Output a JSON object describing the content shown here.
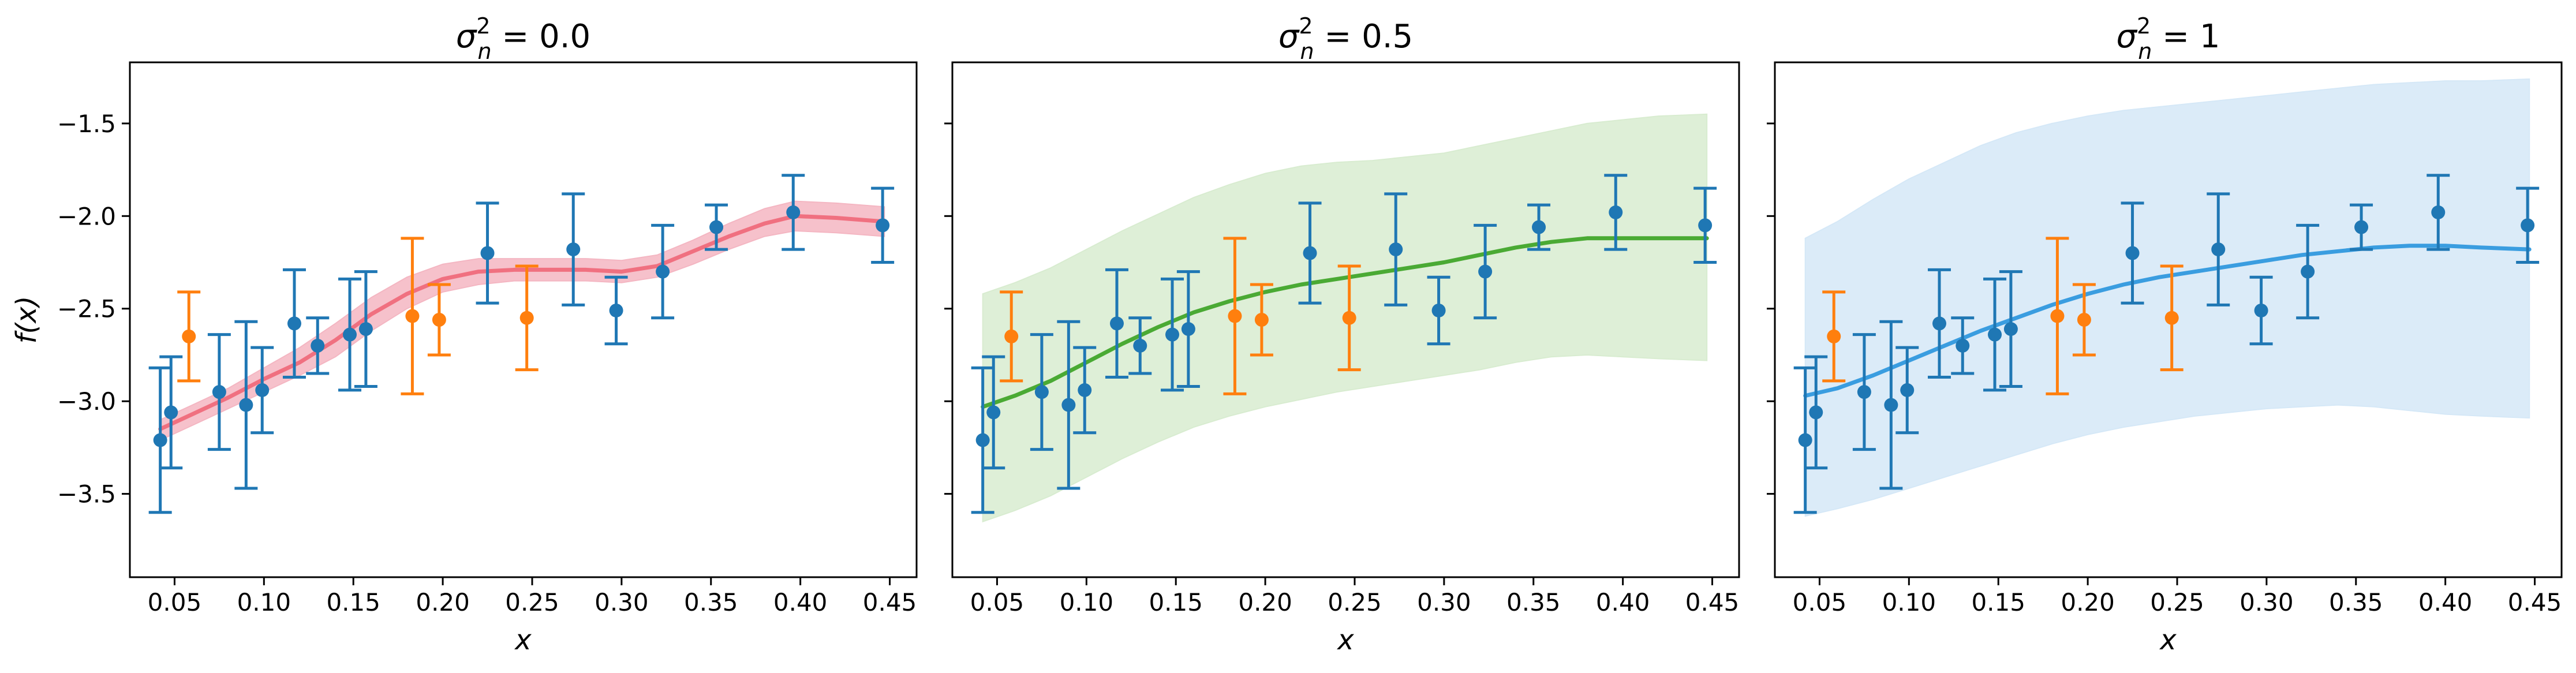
{
  "chart_data": [
    {
      "type": "line",
      "title_main": "σ",
      "title_sub": "n",
      "title_sup": "2",
      "title_rest": " = 0.0",
      "xlabel": "x",
      "ylabel": "f(x)",
      "xlim": [
        0.025,
        0.465
      ],
      "ylim": [
        -3.95,
        -1.17
      ],
      "xticks": [
        "0.05",
        "0.10",
        "0.15",
        "0.20",
        "0.25",
        "0.30",
        "0.35",
        "0.40",
        "0.45"
      ],
      "xtick_values": [
        0.05,
        0.1,
        0.15,
        0.2,
        0.25,
        0.3,
        0.35,
        0.4,
        0.45
      ],
      "yticks": [
        "−3.5",
        "−3.0",
        "−2.5",
        "−2.0",
        "−1.5"
      ],
      "ytick_values": [
        -3.5,
        -3.0,
        -2.5,
        -2.0,
        -1.5
      ],
      "show_yticklabels": true,
      "line_color": "#f07080",
      "band_color": "#f4b6c2",
      "mean": {
        "x": [
          0.042,
          0.06,
          0.08,
          0.1,
          0.12,
          0.14,
          0.16,
          0.18,
          0.2,
          0.22,
          0.24,
          0.26,
          0.28,
          0.3,
          0.32,
          0.34,
          0.36,
          0.38,
          0.397,
          0.42,
          0.447
        ],
        "y": [
          -3.15,
          -3.07,
          -2.98,
          -2.88,
          -2.79,
          -2.67,
          -2.53,
          -2.42,
          -2.34,
          -2.3,
          -2.29,
          -2.29,
          -2.29,
          -2.3,
          -2.27,
          -2.19,
          -2.11,
          -2.04,
          -2.0,
          -2.01,
          -2.03
        ]
      },
      "band_upper": [
        -3.1,
        -3.02,
        -2.93,
        -2.82,
        -2.71,
        -2.58,
        -2.44,
        -2.33,
        -2.26,
        -2.23,
        -2.23,
        -2.23,
        -2.23,
        -2.24,
        -2.21,
        -2.13,
        -2.04,
        -1.96,
        -1.92,
        -1.93,
        -1.95
      ],
      "band_lower": [
        -3.21,
        -3.13,
        -3.04,
        -2.95,
        -2.86,
        -2.76,
        -2.62,
        -2.5,
        -2.41,
        -2.37,
        -2.35,
        -2.35,
        -2.35,
        -2.36,
        -2.33,
        -2.26,
        -2.18,
        -2.11,
        -2.08,
        -2.09,
        -2.11
      ]
    },
    {
      "type": "line",
      "title_main": "σ",
      "title_sub": "n",
      "title_sup": "2",
      "title_rest": " = 0.5",
      "xlabel": "x",
      "ylabel": "",
      "xlim": [
        0.025,
        0.465
      ],
      "ylim": [
        -3.95,
        -1.17
      ],
      "xticks": [
        "0.05",
        "0.10",
        "0.15",
        "0.20",
        "0.25",
        "0.30",
        "0.35",
        "0.40",
        "0.45"
      ],
      "xtick_values": [
        0.05,
        0.1,
        0.15,
        0.2,
        0.25,
        0.3,
        0.35,
        0.4,
        0.45
      ],
      "yticks": [
        "−3.5",
        "−3.0",
        "−2.5",
        "−2.0",
        "−1.5"
      ],
      "ytick_values": [
        -3.5,
        -3.0,
        -2.5,
        -2.0,
        -1.5
      ],
      "show_yticklabels": false,
      "line_color": "#4aaa34",
      "band_color": "#d8ecd0",
      "mean": {
        "x": [
          0.042,
          0.06,
          0.08,
          0.1,
          0.12,
          0.14,
          0.16,
          0.18,
          0.2,
          0.22,
          0.24,
          0.26,
          0.28,
          0.3,
          0.32,
          0.34,
          0.36,
          0.38,
          0.4,
          0.42,
          0.447
        ],
        "y": [
          -3.03,
          -2.97,
          -2.89,
          -2.79,
          -2.69,
          -2.6,
          -2.52,
          -2.46,
          -2.41,
          -2.37,
          -2.34,
          -2.31,
          -2.28,
          -2.25,
          -2.21,
          -2.17,
          -2.14,
          -2.12,
          -2.12,
          -2.12,
          -2.12
        ]
      },
      "band_upper": [
        -2.42,
        -2.36,
        -2.28,
        -2.18,
        -2.08,
        -1.99,
        -1.9,
        -1.83,
        -1.77,
        -1.73,
        -1.71,
        -1.7,
        -1.68,
        -1.66,
        -1.62,
        -1.58,
        -1.54,
        -1.5,
        -1.48,
        -1.46,
        -1.45
      ],
      "band_lower": [
        -3.65,
        -3.59,
        -3.51,
        -3.41,
        -3.31,
        -3.22,
        -3.14,
        -3.08,
        -3.03,
        -2.99,
        -2.95,
        -2.92,
        -2.89,
        -2.86,
        -2.83,
        -2.79,
        -2.76,
        -2.75,
        -2.76,
        -2.77,
        -2.78
      ]
    },
    {
      "type": "line",
      "title_main": "σ",
      "title_sub": "n",
      "title_sup": "2",
      "title_rest": " = 1",
      "xlabel": "x",
      "ylabel": "",
      "xlim": [
        0.025,
        0.465
      ],
      "ylim": [
        -3.95,
        -1.17
      ],
      "xticks": [
        "0.05",
        "0.10",
        "0.15",
        "0.20",
        "0.25",
        "0.30",
        "0.35",
        "0.40",
        "0.45"
      ],
      "xtick_values": [
        0.05,
        0.1,
        0.15,
        0.2,
        0.25,
        0.3,
        0.35,
        0.4,
        0.45
      ],
      "yticks": [
        "−3.5",
        "−3.0",
        "−2.5",
        "−2.0",
        "−1.5"
      ],
      "ytick_values": [
        -3.5,
        -3.0,
        -2.5,
        -2.0,
        -1.5
      ],
      "show_yticklabels": false,
      "line_color": "#3a9de0",
      "band_color": "#d5e8f7",
      "mean": {
        "x": [
          0.042,
          0.06,
          0.08,
          0.1,
          0.12,
          0.14,
          0.16,
          0.18,
          0.2,
          0.22,
          0.24,
          0.26,
          0.28,
          0.3,
          0.32,
          0.34,
          0.36,
          0.38,
          0.4,
          0.42,
          0.447
        ],
        "y": [
          -2.97,
          -2.93,
          -2.86,
          -2.78,
          -2.7,
          -2.62,
          -2.55,
          -2.48,
          -2.42,
          -2.37,
          -2.33,
          -2.3,
          -2.27,
          -2.24,
          -2.21,
          -2.19,
          -2.17,
          -2.16,
          -2.16,
          -2.17,
          -2.18
        ]
      },
      "band_upper": [
        -2.12,
        -2.03,
        -1.91,
        -1.8,
        -1.71,
        -1.62,
        -1.55,
        -1.5,
        -1.46,
        -1.43,
        -1.41,
        -1.39,
        -1.37,
        -1.35,
        -1.33,
        -1.31,
        -1.29,
        -1.28,
        -1.27,
        -1.27,
        -1.26
      ],
      "band_lower": [
        -3.62,
        -3.58,
        -3.53,
        -3.47,
        -3.41,
        -3.35,
        -3.29,
        -3.23,
        -3.18,
        -3.14,
        -3.11,
        -3.08,
        -3.06,
        -3.04,
        -3.03,
        -3.02,
        -3.03,
        -3.05,
        -3.07,
        -3.08,
        -3.09
      ]
    }
  ],
  "observations": {
    "color": "#1f77b4",
    "points": [
      {
        "x": 0.042,
        "y": -3.21,
        "err": 0.39
      },
      {
        "x": 0.048,
        "y": -3.06,
        "err": 0.3
      },
      {
        "x": 0.075,
        "y": -2.95,
        "err": 0.31
      },
      {
        "x": 0.09,
        "y": -3.02,
        "err": 0.45
      },
      {
        "x": 0.099,
        "y": -2.94,
        "err": 0.23
      },
      {
        "x": 0.117,
        "y": -2.58,
        "err": 0.29
      },
      {
        "x": 0.13,
        "y": -2.7,
        "err": 0.15
      },
      {
        "x": 0.148,
        "y": -2.64,
        "err": 0.3
      },
      {
        "x": 0.157,
        "y": -2.61,
        "err": 0.31
      },
      {
        "x": 0.225,
        "y": -2.2,
        "err": 0.27
      },
      {
        "x": 0.273,
        "y": -2.18,
        "err": 0.3
      },
      {
        "x": 0.297,
        "y": -2.51,
        "err": 0.18
      },
      {
        "x": 0.323,
        "y": -2.3,
        "err": 0.25
      },
      {
        "x": 0.353,
        "y": -2.06,
        "err": 0.12
      },
      {
        "x": 0.396,
        "y": -1.98,
        "err": 0.2
      },
      {
        "x": 0.446,
        "y": -2.05,
        "err": 0.2
      }
    ]
  },
  "heldout": {
    "color": "#ff7f0e",
    "points": [
      {
        "x": 0.058,
        "y": -2.65,
        "err": 0.24
      },
      {
        "x": 0.183,
        "y": -2.54,
        "err": 0.42
      },
      {
        "x": 0.198,
        "y": -2.56,
        "err": 0.19
      },
      {
        "x": 0.247,
        "y": -2.55,
        "err": 0.28
      }
    ]
  }
}
